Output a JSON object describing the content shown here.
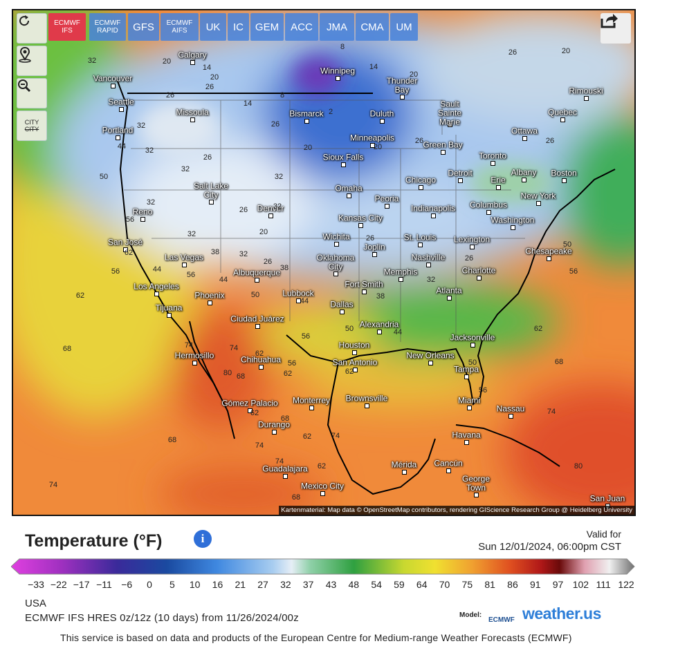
{
  "toolbar": {
    "models": [
      "ECMWF IFS",
      "ECMWF RAPID",
      "GFS",
      "ECMWF AIFS",
      "UK",
      "IC",
      "GEM",
      "ACC",
      "JMA",
      "CMA",
      "UM"
    ],
    "city_toggle": [
      "CITY",
      "CITY"
    ]
  },
  "map": {
    "cities": [
      "Calgary",
      "Vancouver",
      "Winnipeg",
      "Thunder Bay",
      "Rimouski",
      "Seattle",
      "Missoula",
      "Bismarck",
      "Duluth",
      "Sault Sainte Marie",
      "Quebec",
      "Portland",
      "Ottawa",
      "Minneapolis",
      "Green Bay",
      "Toronto",
      "Sioux Falls",
      "Albany",
      "Boston",
      "Chicago",
      "Detroit",
      "Erie",
      "Salt Lake City",
      "Omaha",
      "Peoria",
      "New York",
      "Indianapolis",
      "Columbus",
      "Reno",
      "Denver",
      "Kansas City",
      "Washington",
      "Wichita",
      "St. Louis",
      "Lexington",
      "San José",
      "Joplin",
      "Chesapeake",
      "Las Vegas",
      "Nashville",
      "Oklahoma City",
      "Memphis",
      "Charlotte",
      "Albuquerque",
      "Los Angeles",
      "Fort Smith",
      "Atlanta",
      "Phoenix",
      "Lubbock",
      "Dallas",
      "Tijuana",
      "Ciudad Juárez",
      "Alexandria",
      "Jacksonville",
      "Houston",
      "Hermosillo",
      "New Orleans",
      "San Antonio",
      "Chihuahua",
      "Tampa",
      "Brownsville",
      "Miami",
      "Gómez Palacio",
      "Monterrey",
      "Nassau",
      "Durango",
      "Havana",
      "Cancún",
      "Mérida",
      "Guadalajara",
      "George Town",
      "Mexico City",
      "San Juan"
    ],
    "isotherm_labels": [
      "32",
      "20",
      "14",
      "20",
      "26",
      "8",
      "14",
      "20",
      "26",
      "20",
      "26",
      "14",
      "8",
      "2",
      "26",
      "32",
      "44",
      "32",
      "26",
      "20",
      "20",
      "26",
      "26",
      "32",
      "50",
      "32",
      "32",
      "26",
      "32",
      "56",
      "20",
      "32",
      "26",
      "62",
      "38",
      "32",
      "26",
      "38",
      "44",
      "56",
      "56",
      "44",
      "32",
      "26",
      "50",
      "56",
      "62",
      "50",
      "38",
      "44",
      "68",
      "56",
      "50",
      "44",
      "62",
      "74",
      "74",
      "62",
      "50",
      "68",
      "56",
      "80",
      "68",
      "62",
      "62",
      "56",
      "74",
      "62",
      "68",
      "68",
      "62",
      "74",
      "74",
      "80",
      "74",
      "62",
      "74",
      "68"
    ],
    "attribution": "Kartenmaterial: Map data © OpenStreetMap contributors, rendering GIScience Research Group @ Heidelberg University"
  },
  "legend": {
    "title": "Temperature (°F)",
    "info": "i",
    "valid_label": "Valid for",
    "valid_time": "Sun 12/01/2024, 06:00pm CST",
    "ticks": [
      "−33",
      "−22",
      "−17",
      "−11",
      "−6",
      "0",
      "5",
      "10",
      "16",
      "21",
      "27",
      "32",
      "37",
      "43",
      "48",
      "54",
      "59",
      "64",
      "70",
      "75",
      "81",
      "86",
      "91",
      "97",
      "102",
      "111",
      "122"
    ]
  },
  "footer": {
    "region": "USA",
    "model_run": "ECMWF IFS HRES 0z/12z (10 days) from 11/26/2024/00z",
    "model_label": "Model:",
    "ecmwf_logo": "ECMWF",
    "brand": "weather.us",
    "disclaimer": "This service is based on data and products of the European Centre for Medium-range Weather Forecasts (ECMWF)"
  }
}
